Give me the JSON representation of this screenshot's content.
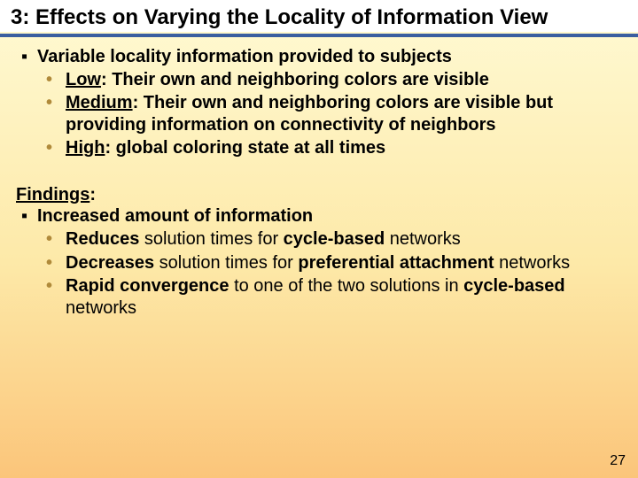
{
  "title": "3: Effects on Varying the Locality of Information View",
  "section1": {
    "heading": "Variable locality information provided to subjects",
    "items": [
      {
        "label": "Low",
        "text": ": Their own and neighboring colors are visible"
      },
      {
        "label": "Medium",
        "text": ": Their own and neighboring colors are visible but providing information on connectivity of neighbors"
      },
      {
        "label": "High",
        "text": ": global coloring state at all times"
      }
    ]
  },
  "findings_label": "Findings",
  "section2": {
    "heading": "Increased amount of information",
    "items": [
      {
        "pre": "Reduces",
        "mid1": " solution times for ",
        "strong1": "cycle-based",
        "post": " networks"
      },
      {
        "pre": "Decreases",
        "mid1": " solution times for ",
        "strong1": "preferential attachment",
        "post": " networks"
      },
      {
        "pre": "Rapid convergence",
        "mid1": " to one of the two solutions in ",
        "strong1": "cycle-based",
        "post": " networks"
      }
    ]
  },
  "page_number": "27",
  "colors": {
    "rule": "#3a5ea0",
    "bullet_gold": "#b08a3a",
    "bg_top": "#fffad4",
    "bg_mid": "#fde9a8",
    "bg_bot": "#fbc57a"
  }
}
